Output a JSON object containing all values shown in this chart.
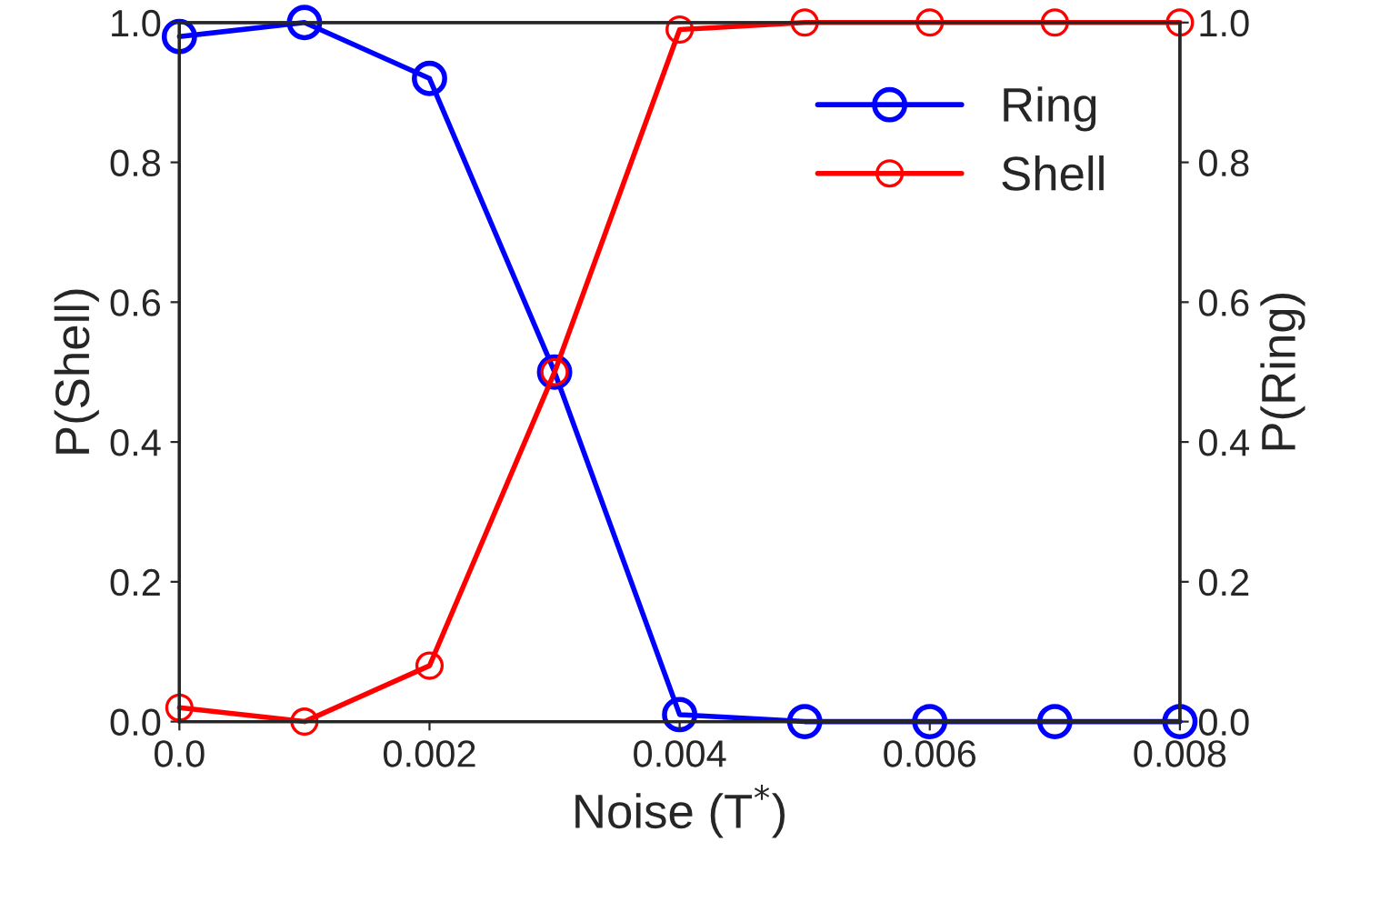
{
  "chart_data": {
    "type": "line",
    "xlabel": "Noise (T$^{*}$)",
    "ylabel": "P(Shell)",
    "y2label": "P(Ring)",
    "x": [
      0,
      0.001,
      0.002,
      0.003,
      0.004,
      0.005,
      0.006,
      0.007,
      0.008
    ],
    "series": [
      {
        "name": "Ring",
        "color": "#0000ff",
        "axis": "y2",
        "values": [
          0.98,
          1.0,
          0.92,
          0.5,
          0.01,
          0,
          0,
          0,
          0
        ]
      },
      {
        "name": "Shell",
        "color": "#ff0000",
        "values": [
          0.02,
          0.0,
          0.08,
          0.5,
          0.99,
          1,
          1,
          1,
          1
        ]
      }
    ],
    "xlim": [
      0,
      0.008
    ],
    "xticks": [
      {
        "value": 0,
        "label": "0.0"
      },
      {
        "value": 0.002,
        "label": "0.002"
      },
      {
        "value": 0.004,
        "label": "0.004"
      },
      {
        "value": 0.006,
        "label": "0.006"
      },
      {
        "value": 0.008,
        "label": "0.008"
      }
    ],
    "ylim": [
      0,
      1
    ],
    "yticks": [
      {
        "value": 0,
        "label": "0.0"
      },
      0.2,
      0.4,
      0.6,
      0.8,
      {
        "value": 1,
        "label": "1.0"
      }
    ],
    "y2lim": [
      0,
      1
    ],
    "y2ticks": [
      {
        "value": 0,
        "label": "0.0"
      },
      0.2,
      0.4,
      0.6,
      0.8,
      {
        "value": 1,
        "label": "1.0"
      }
    ],
    "marker": "circle",
    "line_style": "solid",
    "legend": "top right",
    "grid": false
  }
}
